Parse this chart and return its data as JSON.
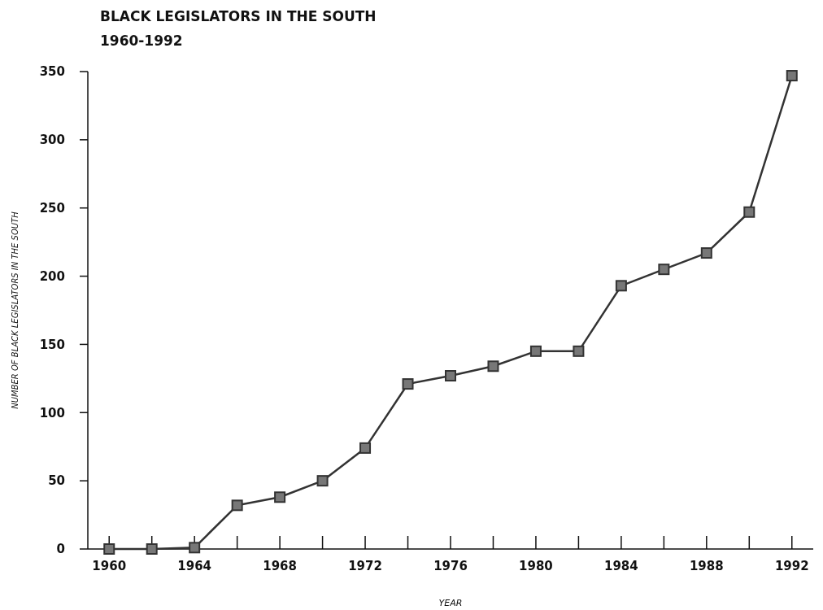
{
  "chart_data": {
    "type": "line",
    "title": "BLACK LEGISLATORS IN THE SOUTH",
    "subtitle": "1960-1992",
    "xlabel": "YEAR",
    "ylabel": "NUMBER OF BLACK LEGISLATORS IN THE SOUTH",
    "x": [
      1960,
      1962,
      1964,
      1966,
      1968,
      1970,
      1972,
      1974,
      1976,
      1978,
      1980,
      1982,
      1984,
      1986,
      1988,
      1990,
      1992
    ],
    "series": [
      {
        "color": "#333333",
        "values": [
          0,
          0,
          1,
          32,
          38,
          50,
          74,
          121,
          127,
          134,
          145,
          145,
          193,
          205,
          217,
          247,
          347
        ]
      }
    ],
    "xlim": [
      1959,
      1993
    ],
    "xticks": [
      1960,
      {
        "value": 1962,
        "label": null
      },
      1964,
      {
        "value": 1966,
        "label": null
      },
      1968,
      {
        "value": 1970,
        "label": null
      },
      1972,
      {
        "value": 1974,
        "label": null
      },
      1976,
      {
        "value": 1978,
        "label": null
      },
      1980,
      {
        "value": 1982,
        "label": null
      },
      1984,
      {
        "value": 1986,
        "label": null
      },
      1988,
      {
        "value": 1990,
        "label": null
      },
      1992
    ],
    "ylim": [
      0,
      350
    ],
    "yticks": [
      0,
      50,
      100,
      150,
      200,
      250,
      300,
      350
    ],
    "grid": false,
    "marker": "square",
    "line_style": "solid"
  }
}
